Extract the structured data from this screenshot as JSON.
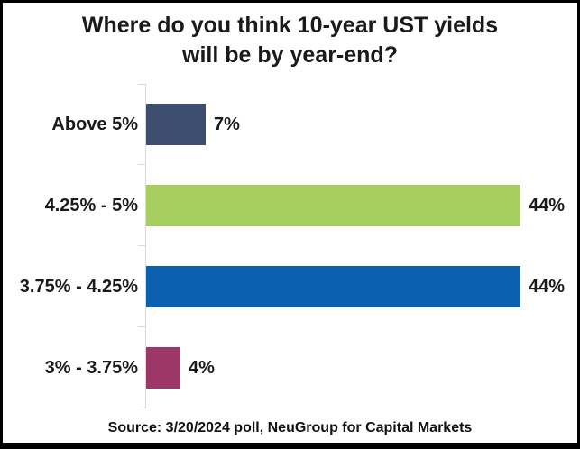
{
  "title": {
    "line1": "Where do you think 10-year UST yields",
    "line2": "will be by year-end?"
  },
  "chart_data": {
    "type": "bar",
    "orientation": "horizontal",
    "title": "Where do you think 10-year UST yields will be by year-end?",
    "categories": [
      "Above 5%",
      "4.25% - 5%",
      "3.75% - 4.25%",
      "3% - 3.75%"
    ],
    "values": [
      7,
      44,
      44,
      4
    ],
    "value_labels": [
      "7%",
      "44%",
      "44%",
      "4%"
    ],
    "colors": [
      "#3E4E6E",
      "#A6CF5F",
      "#0B61B0",
      "#9D3768"
    ],
    "xlabel": "",
    "ylabel": "",
    "xlim": [
      0,
      47
    ],
    "grid": false,
    "legend": "none",
    "axis_color": "#d9d9d9"
  },
  "source": "Source: 3/20/2024 poll, NeuGroup for Capital Markets"
}
